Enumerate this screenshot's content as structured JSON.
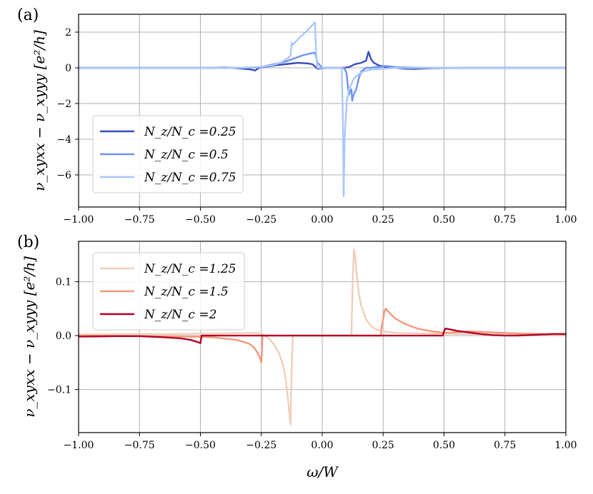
{
  "chart_data": [
    {
      "panel_label": "(a)",
      "type": "line",
      "xlabel": "",
      "ylabel": "ν_xyxx − ν_xyyy [e²/h]",
      "xlim": [
        -1.0,
        1.0
      ],
      "ylim": [
        -7.8,
        3.0
      ],
      "xticks": [
        -1.0,
        -0.75,
        -0.5,
        -0.25,
        0.0,
        0.25,
        0.5,
        0.75,
        1.0
      ],
      "xtick_labels": [
        "−1.00",
        "−0.75",
        "−0.50",
        "−0.25",
        "0.00",
        "0.25",
        "0.50",
        "0.75",
        "1.00"
      ],
      "yticks": [
        2,
        0,
        -2,
        -4,
        -6
      ],
      "ytick_labels": [
        "2",
        "0",
        "−2",
        "−4",
        "−6"
      ],
      "grid": true,
      "legend": "lower-left",
      "series": [
        {
          "name": "N_z/N_c =0.25",
          "color": "#3b4cc0",
          "x": [
            -1.0,
            -0.45,
            -0.4,
            -0.35,
            -0.3,
            -0.285,
            -0.275,
            -0.26,
            -0.22,
            -0.18,
            -0.14,
            -0.1,
            -0.06,
            -0.04,
            -0.03,
            -0.02,
            0.0,
            0.02,
            0.05,
            0.09,
            0.1,
            0.11,
            0.12,
            0.13,
            0.14,
            0.16,
            0.18,
            0.19,
            0.2,
            0.21,
            0.23,
            0.26,
            0.3,
            0.34,
            0.38,
            0.45,
            0.6,
            1.0
          ],
          "y": [
            0.0,
            0.0,
            0.02,
            -0.02,
            -0.08,
            -0.12,
            -0.15,
            0.0,
            0.08,
            0.16,
            0.22,
            0.28,
            0.25,
            0.2,
            0.08,
            -0.05,
            -0.02,
            0.0,
            0.0,
            0.0,
            0.02,
            0.05,
            0.1,
            0.18,
            0.22,
            0.28,
            0.4,
            0.9,
            0.5,
            0.3,
            0.15,
            0.05,
            0.0,
            -0.05,
            -0.06,
            -0.02,
            0.0,
            0.0
          ]
        },
        {
          "name": "N_z/N_c =0.5",
          "color": "#6f92f3",
          "x": [
            -1.0,
            -0.4,
            -0.3,
            -0.25,
            -0.2,
            -0.15,
            -0.12,
            -0.08,
            -0.05,
            -0.03,
            -0.025,
            -0.02,
            0.0,
            0.05,
            0.09,
            0.1,
            0.105,
            0.11,
            0.115,
            0.12,
            0.123,
            0.127,
            0.132,
            0.14,
            0.15,
            0.16,
            0.18,
            0.2,
            0.22,
            0.26,
            0.3,
            0.4,
            0.6,
            1.0
          ],
          "y": [
            0.0,
            0.0,
            0.0,
            0.05,
            0.2,
            0.35,
            0.5,
            0.7,
            0.8,
            0.85,
            0.6,
            0.3,
            0.0,
            0.0,
            0.0,
            -0.3,
            -1.0,
            -1.5,
            -1.3,
            -1.2,
            -1.85,
            -1.6,
            -1.4,
            -1.2,
            -0.6,
            -0.2,
            0.0,
            0.0,
            0.05,
            0.1,
            0.05,
            0.0,
            0.0,
            0.0
          ]
        },
        {
          "name": "N_z/N_c =0.75",
          "color": "#aac7fd",
          "x": [
            -1.0,
            -0.35,
            -0.25,
            -0.2,
            -0.17,
            -0.14,
            -0.13,
            -0.125,
            -0.12,
            -0.1,
            -0.08,
            -0.06,
            -0.04,
            -0.03,
            -0.025,
            -0.02,
            0.0,
            0.05,
            0.08,
            0.085,
            0.088,
            0.092,
            0.1,
            0.11,
            0.13,
            0.15,
            0.17,
            0.2,
            0.25,
            0.3,
            0.4,
            1.0
          ],
          "y": [
            0.0,
            0.0,
            0.05,
            0.15,
            0.3,
            0.55,
            0.7,
            1.4,
            1.3,
            1.6,
            1.85,
            2.1,
            2.4,
            2.55,
            0.8,
            0.0,
            0.0,
            0.0,
            0.0,
            -3.0,
            -7.2,
            -4.0,
            -2.0,
            -1.2,
            -0.6,
            -0.35,
            -0.2,
            -0.1,
            -0.05,
            0.0,
            0.0,
            0.0
          ]
        }
      ]
    },
    {
      "panel_label": "(b)",
      "type": "line",
      "xlabel": "ω/W",
      "ylabel": "ν_xyxx − ν_xyyy [e²/h]",
      "xlim": [
        -1.0,
        1.0
      ],
      "ylim": [
        -0.18,
        0.175
      ],
      "xticks": [
        -1.0,
        -0.75,
        -0.5,
        -0.25,
        0.0,
        0.25,
        0.5,
        0.75,
        1.0
      ],
      "xtick_labels": [
        "−1.00",
        "−0.75",
        "−0.50",
        "−0.25",
        "0.00",
        "0.25",
        "0.50",
        "0.75",
        "1.00"
      ],
      "yticks": [
        0.1,
        0.0,
        -0.1
      ],
      "ytick_labels": [
        "0.1",
        "0.0",
        "−0.1"
      ],
      "grid": true,
      "legend": "top-left",
      "series": [
        {
          "name": "N_z/N_c =1.25",
          "color": "#efcebd",
          "x": [
            -1.0,
            -0.6,
            -0.4,
            -0.3,
            -0.25,
            -0.22,
            -0.2,
            -0.18,
            -0.16,
            -0.15,
            -0.14,
            -0.135,
            -0.13,
            -0.125,
            -0.12,
            0.0,
            0.12,
            0.125,
            0.13,
            0.135,
            0.14,
            0.15,
            0.16,
            0.18,
            0.2,
            0.22,
            0.25,
            0.3,
            0.4,
            0.6,
            1.0
          ],
          "y": [
            0.002,
            0.003,
            0.004,
            0.005,
            0.004,
            -0.005,
            -0.015,
            -0.03,
            -0.055,
            -0.08,
            -0.12,
            -0.145,
            -0.165,
            -0.05,
            0.0,
            0.0,
            0.0,
            0.1,
            0.16,
            0.15,
            0.12,
            0.08,
            0.055,
            0.03,
            0.018,
            0.012,
            0.008,
            0.005,
            0.004,
            0.003,
            0.002
          ]
        },
        {
          "name": "N_z/N_c =1.5",
          "color": "#f4987a",
          "x": [
            -1.0,
            -0.6,
            -0.45,
            -0.35,
            -0.3,
            -0.28,
            -0.265,
            -0.255,
            -0.25,
            -0.245,
            0.0,
            0.24,
            0.245,
            0.25,
            0.255,
            0.26,
            0.27,
            0.28,
            0.3,
            0.33,
            0.36,
            0.4,
            0.45,
            0.5,
            0.55,
            0.6,
            0.7,
            0.8,
            1.0
          ],
          "y": [
            0.0,
            -0.001,
            -0.003,
            -0.008,
            -0.015,
            -0.022,
            -0.032,
            -0.042,
            -0.05,
            0.0,
            0.0,
            0.0,
            0.02,
            0.03,
            0.045,
            0.05,
            0.045,
            0.04,
            0.032,
            0.024,
            0.018,
            0.012,
            0.008,
            0.005,
            0.006,
            0.008,
            0.006,
            0.004,
            0.002
          ]
        },
        {
          "name": "N_z/N_c =2",
          "color": "#b40426",
          "x": [
            -1.0,
            -0.85,
            -0.75,
            -0.65,
            -0.58,
            -0.54,
            -0.51,
            -0.5,
            -0.495,
            0.0,
            0.495,
            0.5,
            0.505,
            0.52,
            0.55,
            0.6,
            0.65,
            0.7,
            0.75,
            0.8,
            0.85,
            0.9,
            0.95,
            1.0
          ],
          "y": [
            -0.002,
            -0.001,
            -0.001,
            -0.003,
            -0.005,
            -0.008,
            -0.012,
            -0.014,
            0.0,
            0.0,
            0.0,
            0.008,
            0.013,
            0.012,
            0.009,
            0.006,
            0.003,
            0.001,
            0.0,
            0.0,
            0.001,
            0.002,
            0.003,
            0.003
          ]
        }
      ]
    }
  ]
}
